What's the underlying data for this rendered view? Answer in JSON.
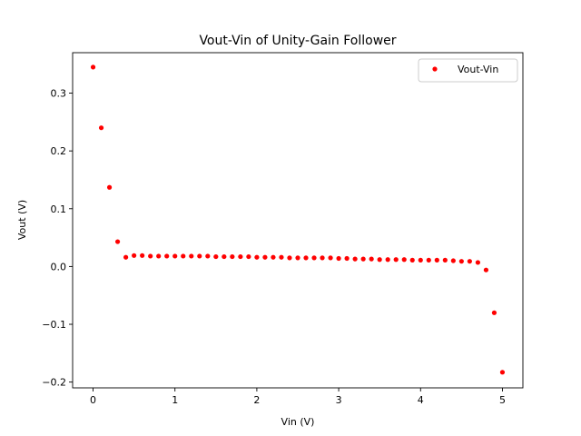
{
  "chart_data": {
    "type": "scatter",
    "title": "Vout-Vin of Unity-Gain Follower",
    "xlabel": "Vin (V)",
    "ylabel": "Vout (V)",
    "xlim": [
      -0.25,
      5.25
    ],
    "ylim": [
      -0.21,
      0.37
    ],
    "xticks": [
      0,
      1,
      2,
      3,
      4,
      5
    ],
    "yticks": [
      -0.2,
      -0.1,
      0.0,
      0.1,
      0.2,
      0.3
    ],
    "ytick_labels": [
      "−0.2",
      "−0.1",
      "0.0",
      "0.1",
      "0.2",
      "0.3"
    ],
    "grid": false,
    "legend_position": "top-right",
    "series": [
      {
        "name": "Vout-Vin",
        "color": "#ff0000",
        "marker": "point",
        "x": [
          0.0,
          0.1,
          0.2,
          0.3,
          0.4,
          0.5,
          0.6,
          0.7,
          0.8,
          0.9,
          1.0,
          1.1,
          1.2,
          1.3,
          1.4,
          1.5,
          1.6,
          1.7,
          1.8,
          1.9,
          2.0,
          2.1,
          2.2,
          2.3,
          2.4,
          2.5,
          2.6,
          2.7,
          2.8,
          2.9,
          3.0,
          3.1,
          3.2,
          3.3,
          3.4,
          3.5,
          3.6,
          3.7,
          3.8,
          3.9,
          4.0,
          4.1,
          4.2,
          4.3,
          4.4,
          4.5,
          4.6,
          4.7,
          4.8,
          4.9,
          5.0
        ],
        "y": [
          0.345,
          0.24,
          0.137,
          0.043,
          0.016,
          0.019,
          0.019,
          0.018,
          0.018,
          0.018,
          0.018,
          0.018,
          0.018,
          0.018,
          0.018,
          0.017,
          0.017,
          0.017,
          0.017,
          0.017,
          0.016,
          0.016,
          0.016,
          0.016,
          0.015,
          0.015,
          0.015,
          0.015,
          0.015,
          0.015,
          0.014,
          0.014,
          0.013,
          0.013,
          0.013,
          0.012,
          0.012,
          0.012,
          0.012,
          0.011,
          0.011,
          0.011,
          0.011,
          0.011,
          0.01,
          0.009,
          0.009,
          0.007,
          -0.006,
          -0.08,
          -0.183
        ]
      }
    ]
  }
}
